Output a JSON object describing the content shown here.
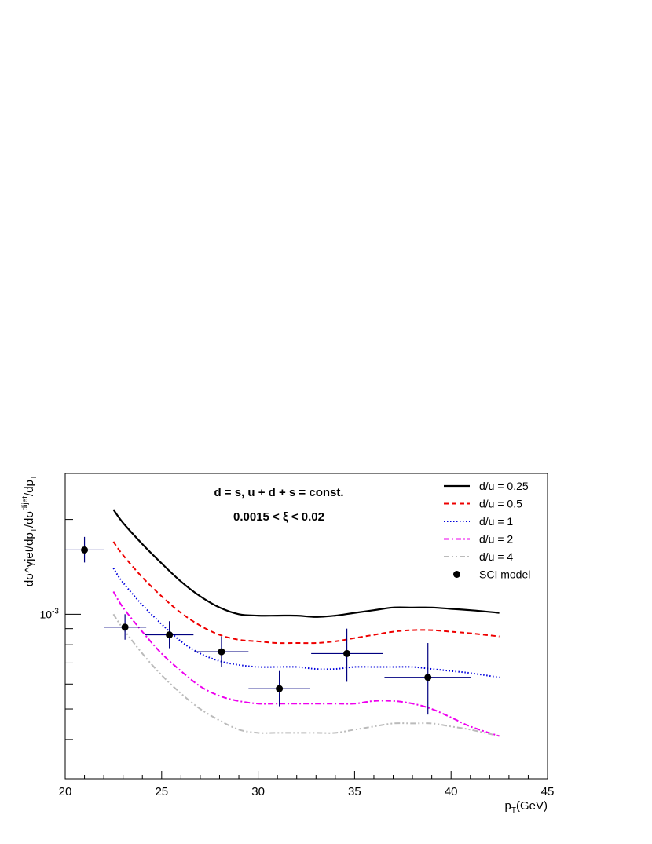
{
  "chart_data": {
    "type": "line",
    "xlabel": "p_T(GeV)",
    "ylabel": "dσ^γjet/dp_T/dσ^dijet/dp_T",
    "yscale": "log",
    "xlim": [
      20,
      45
    ],
    "ylim": [
      0.0003,
      0.0028
    ],
    "x_ticks": [
      20,
      25,
      30,
      35,
      40,
      45
    ],
    "y_tick_label": {
      "value": 0.001,
      "text": "10^-3"
    },
    "annotation_lines": [
      "d = s, u + d + s = const.",
      "0.0015 < ξ < 0.02"
    ],
    "legend_position": "top-right",
    "series": [
      {
        "name": "d/u = 0.25",
        "color": "#000000",
        "dash": "solid",
        "x": [
          22.5,
          23.0,
          24.0,
          25.0,
          26.0,
          27.0,
          28.0,
          29.0,
          30.0,
          31.0,
          32.0,
          33.0,
          34.0,
          35.0,
          36.0,
          37.0,
          38.0,
          39.0,
          40.0,
          41.0,
          42.5
        ],
        "y": [
          0.00215,
          0.00195,
          0.00167,
          0.00145,
          0.00127,
          0.00114,
          0.00105,
          0.001,
          0.00099,
          0.00099,
          0.00099,
          0.00098,
          0.00099,
          0.00101,
          0.00103,
          0.00105,
          0.00105,
          0.00105,
          0.00104,
          0.00103,
          0.00101
        ]
      },
      {
        "name": "d/u = 0.5",
        "color": "#ee0000",
        "dash": "dashed",
        "x": [
          22.5,
          23.0,
          24.0,
          25.0,
          26.0,
          27.0,
          28.0,
          29.0,
          30.0,
          31.0,
          32.0,
          33.0,
          34.0,
          35.0,
          36.0,
          37.0,
          38.0,
          39.0,
          40.0,
          41.0,
          42.5
        ],
        "y": [
          0.0017,
          0.00154,
          0.00131,
          0.00114,
          0.00101,
          0.00092,
          0.00086,
          0.00083,
          0.00082,
          0.00081,
          0.00081,
          0.00081,
          0.00082,
          0.00084,
          0.00086,
          0.00088,
          0.00089,
          0.00089,
          0.00088,
          0.00087,
          0.00085
        ]
      },
      {
        "name": "d/u = 1",
        "color": "#0000dd",
        "dash": "dotted",
        "x": [
          22.5,
          23.0,
          24.0,
          25.0,
          26.0,
          27.0,
          28.0,
          29.0,
          30.0,
          31.0,
          32.0,
          33.0,
          34.0,
          35.0,
          36.0,
          37.0,
          38.0,
          39.0,
          40.0,
          41.0,
          42.5
        ],
        "y": [
          0.0014,
          0.00126,
          0.00107,
          0.00093,
          0.00082,
          0.00075,
          0.00071,
          0.00069,
          0.00068,
          0.00068,
          0.00068,
          0.00067,
          0.00067,
          0.00068,
          0.00068,
          0.00068,
          0.00068,
          0.00067,
          0.00066,
          0.00065,
          0.00063
        ]
      },
      {
        "name": "d/u = 2",
        "color": "#ee00ee",
        "dash": "dashdot",
        "x": [
          22.5,
          23.0,
          24.0,
          25.0,
          26.0,
          27.0,
          28.0,
          29.0,
          30.0,
          31.0,
          32.0,
          33.0,
          34.0,
          35.0,
          36.0,
          37.0,
          38.0,
          39.0,
          40.0,
          41.0,
          42.5
        ],
        "y": [
          0.00118,
          0.00105,
          0.00088,
          0.00075,
          0.00066,
          0.00059,
          0.00055,
          0.00053,
          0.00052,
          0.00052,
          0.00052,
          0.00052,
          0.00052,
          0.00052,
          0.00053,
          0.00053,
          0.00052,
          0.0005,
          0.00047,
          0.00044,
          0.00041
        ]
      },
      {
        "name": "d/u = 4",
        "color": "#bbbbbb",
        "dash": "dashdotdot",
        "x": [
          22.5,
          23.0,
          24.0,
          25.0,
          26.0,
          27.0,
          28.0,
          29.0,
          30.0,
          31.0,
          32.0,
          33.0,
          34.0,
          35.0,
          36.0,
          37.0,
          38.0,
          39.0,
          40.0,
          41.0,
          42.5
        ],
        "y": [
          0.001,
          0.0009,
          0.00075,
          0.00064,
          0.00056,
          0.0005,
          0.00046,
          0.00043,
          0.00042,
          0.00042,
          0.00042,
          0.00042,
          0.00042,
          0.00043,
          0.00044,
          0.00045,
          0.00045,
          0.00045,
          0.00044,
          0.00043,
          0.00041
        ]
      }
    ],
    "points": {
      "name": "SCI model",
      "color": "#000000",
      "error_color": "#000080",
      "data": [
        {
          "x": 21.0,
          "y": 0.0016,
          "xerr": 1.0,
          "ylo": 0.00146,
          "yhi": 0.00176
        },
        {
          "x": 23.1,
          "y": 0.00091,
          "xerr": 1.1,
          "ylo": 0.00083,
          "yhi": 0.001
        },
        {
          "x": 25.4,
          "y": 0.00086,
          "xerr": 1.25,
          "ylo": 0.00078,
          "yhi": 0.00095
        },
        {
          "x": 28.1,
          "y": 0.00076,
          "xerr": 1.4,
          "ylo": 0.00068,
          "yhi": 0.00085
        },
        {
          "x": 31.1,
          "y": 0.00058,
          "xerr": 1.6,
          "ylo": 0.00051,
          "yhi": 0.00066
        },
        {
          "x": 34.6,
          "y": 0.00075,
          "xerr": 1.85,
          "ylo": 0.00061,
          "yhi": 0.0009
        },
        {
          "x": 38.8,
          "y": 0.00063,
          "xerr": 2.25,
          "ylo": 0.00048,
          "yhi": 0.00081
        }
      ]
    }
  }
}
